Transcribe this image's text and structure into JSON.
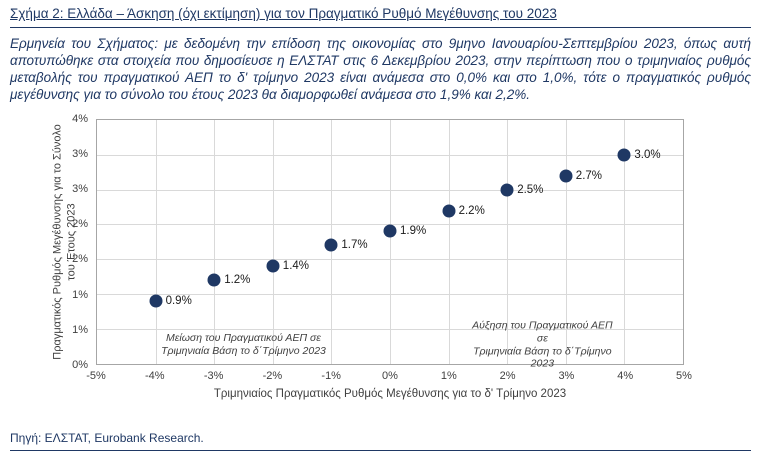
{
  "page": {
    "title": "Σχήμα 2: Ελλάδα – Άσκηση (όχι εκτίμηση) για τον Πραγματικό Ρυθμό Μεγέθυνσης του 2023",
    "description": "Ερμηνεία του Σχήματος: με δεδομένη την επίδοση της οικονομίας στο 9μηνο Ιανουαρίου-Σεπτεμβρίου 2023, όπως αυτή αποτυπώθηκε στα στοιχεία που δημοσίευσε η ΕΛΣΤΑΤ στις 6 Δεκεμβρίου 2023, στην περίπτωση που ο τριμηνιαίος ρυθμός μεταβολής του πραγματικού ΑΕΠ το δ' τρίμηνο 2023 είναι ανάμεσα στο 0,0% και στο 1,0%, τότε ο πραγματικός ρυθμός μεγέθυνσης για το σύνολο του έτους 2023 θα διαμορφωθεί ανάμεσα στο 1,9% και 2,2%.",
    "source": "Πηγή: ΕΛΣΤΑΤ, Eurobank Research."
  },
  "colors": {
    "navy": "#1f3864",
    "point": "#1f3864",
    "grid": "#d9d9d9",
    "plot_border": "#a6a6a6",
    "chart_text": "#404040"
  },
  "chart_data": {
    "type": "scatter",
    "title": "",
    "x": [
      -4,
      -3,
      -2,
      -1,
      0,
      1,
      2,
      3,
      4
    ],
    "y": [
      0.9,
      1.2,
      1.4,
      1.7,
      1.9,
      2.2,
      2.5,
      2.7,
      3.0
    ],
    "point_labels": [
      "0.9%",
      "1.2%",
      "1.4%",
      "1.7%",
      "1.9%",
      "2.2%",
      "2.5%",
      "2.7%",
      "3.0%"
    ],
    "xlabel": "Τριμηνιαίος Πραγματικός Ρυθμός Μεγέθυνσης για το δ' Τρίμηνο 2023",
    "ylabel": "Πραγματικός Ρυθμός Μεγέθυνσης για το Σύνολο του Έτους 2023",
    "xlim": [
      -5,
      5
    ],
    "ylim": [
      0,
      3.5
    ],
    "x_ticks": [
      "-5%",
      "-4%",
      "-3%",
      "-2%",
      "-1%",
      "0%",
      "1%",
      "2%",
      "3%",
      "4%",
      "5%"
    ],
    "y_ticks": [
      "0%",
      "1%",
      "1%",
      "2%",
      "2%",
      "3%",
      "3%",
      "4%"
    ],
    "grid": true,
    "legend": "none",
    "annotations": [
      {
        "text": "Μείωση του Πραγματικού ΑΕΠ σε\nΤριμηνιαία Βάση το δ΄Τρίμηνο 2023",
        "x": -2.5,
        "y": 0.27
      },
      {
        "text": "Αύξηση του Πραγματικού ΑΕΠ σε\nΤριμηνιαία Βάση το δ΄Τρίμηνο 2023",
        "x": 2.6,
        "y": 0.27
      }
    ]
  }
}
